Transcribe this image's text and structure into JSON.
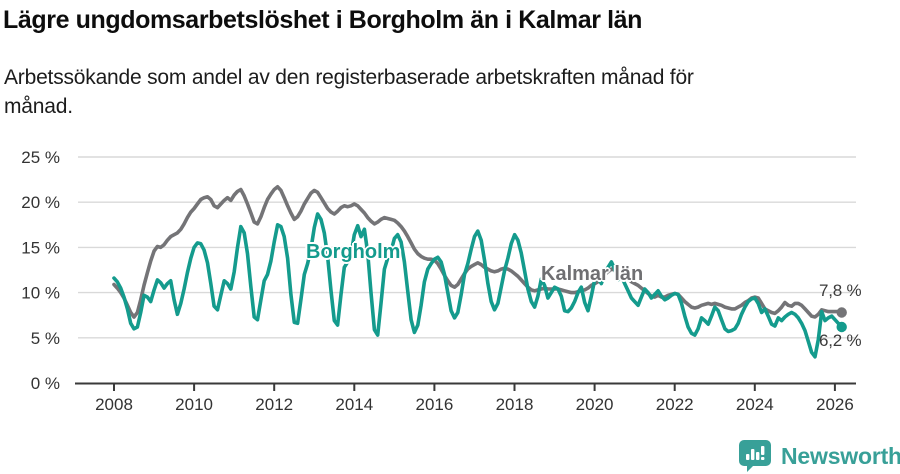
{
  "chart_data": {
    "type": "line",
    "title": "Lägre ungdomsarbetslöshet i Borgholm än i Kalmar län",
    "subtitle_lines": [
      "Arbetssökande som andel av den registerbaserade arbetskraften månad för",
      "månad."
    ],
    "unit": "%",
    "x_range": {
      "start": "2008-01",
      "end": "2026-03"
    },
    "x_tick_labels": [
      "2008",
      "2010",
      "2012",
      "2014",
      "2016",
      "2018",
      "2020",
      "2022",
      "2024",
      "2026"
    ],
    "y_tick_labels": [
      "0 %",
      "5 %",
      "10 %",
      "15 %",
      "20 %",
      "25 %"
    ],
    "y_tick_values": [
      0,
      5,
      10,
      15,
      20,
      25
    ],
    "ylim": [
      0,
      25
    ],
    "grid": "horizontal",
    "legend_position": "inline-labels",
    "colors": {
      "axis": "#3a3a3a",
      "gridline": "#d9d9d9",
      "tick_text": "#333333"
    },
    "series": [
      {
        "name": "Kalmar län",
        "color": "#747477",
        "label_color": "#6f6f72",
        "end_label": "7,8 %",
        "end_value": 7.8,
        "values": [
          10.9,
          10.5,
          10.0,
          9.4,
          8.6,
          7.8,
          7.3,
          7.8,
          9.2,
          10.8,
          12.2,
          13.5,
          14.6,
          15.1,
          15.0,
          15.3,
          15.8,
          16.2,
          16.4,
          16.6,
          17.0,
          17.6,
          18.3,
          18.9,
          19.3,
          19.8,
          20.3,
          20.5,
          20.6,
          20.3,
          19.6,
          19.4,
          19.8,
          20.2,
          20.5,
          20.2,
          20.8,
          21.2,
          21.4,
          20.7,
          19.8,
          18.8,
          17.8,
          17.6,
          18.4,
          19.4,
          20.3,
          20.9,
          21.4,
          21.7,
          21.3,
          20.5,
          19.6,
          18.8,
          18.1,
          18.4,
          19.0,
          19.8,
          20.4,
          21.0,
          21.3,
          21.1,
          20.5,
          19.9,
          19.3,
          18.9,
          18.7,
          19.0,
          19.4,
          19.6,
          19.5,
          19.6,
          19.8,
          19.6,
          19.2,
          18.8,
          18.3,
          17.9,
          17.6,
          17.8,
          18.1,
          18.3,
          18.2,
          18.1,
          18.0,
          17.7,
          17.3,
          16.8,
          16.2,
          15.5,
          14.8,
          14.3,
          14.0,
          13.8,
          13.7,
          13.7,
          13.6,
          13.2,
          12.6,
          11.9,
          11.3,
          10.8,
          10.6,
          10.9,
          11.5,
          12.1,
          12.6,
          12.9,
          13.1,
          13.3,
          13.1,
          12.8,
          12.6,
          12.4,
          12.3,
          12.4,
          12.6,
          12.7,
          12.6,
          12.4,
          12.1,
          11.8,
          11.4,
          11.0,
          10.6,
          10.3,
          10.2,
          10.3,
          10.4,
          10.5,
          10.4,
          10.4,
          10.4,
          10.4,
          10.3,
          10.2,
          10.1,
          10.0,
          10.0,
          10.1,
          10.2,
          10.3,
          10.5,
          10.8,
          11.0,
          11.2,
          11.5,
          12.0,
          12.3,
          12.6,
          12.5,
          12.3,
          12.0,
          11.8,
          11.5,
          11.2,
          11.0,
          10.8,
          10.5,
          10.2,
          9.9,
          9.6,
          9.5,
          9.7,
          9.5,
          9.5,
          9.7,
          9.8,
          9.9,
          9.8,
          9.4,
          9.0,
          8.7,
          8.4,
          8.3,
          8.4,
          8.6,
          8.7,
          8.8,
          8.7,
          8.8,
          8.7,
          8.6,
          8.4,
          8.3,
          8.2,
          8.2,
          8.4,
          8.6,
          8.9,
          9.1,
          9.4,
          9.5,
          9.4,
          8.8,
          8.2,
          8.0,
          7.8,
          7.7,
          8.0,
          8.4,
          8.9,
          8.6,
          8.5,
          8.8,
          8.8,
          8.6,
          8.2,
          7.8,
          7.4,
          7.3,
          7.6,
          8.1,
          8.0,
          7.9,
          7.9,
          7.9,
          7.9,
          7.8
        ]
      },
      {
        "name": "Borgholm",
        "color": "#149b8d",
        "label_color": "#149b8d",
        "end_label": "6,2 %",
        "end_value": 6.2,
        "values": [
          11.6,
          11.2,
          10.5,
          9.5,
          8.2,
          6.6,
          6.0,
          6.2,
          7.8,
          9.7,
          9.5,
          9.0,
          10.3,
          11.4,
          11.1,
          10.5,
          11.0,
          11.3,
          9.2,
          7.6,
          8.8,
          10.4,
          12.2,
          13.8,
          15.0,
          15.5,
          15.4,
          14.7,
          13.3,
          11.0,
          8.5,
          8.1,
          9.7,
          11.3,
          11.0,
          10.4,
          12.3,
          15.0,
          17.3,
          16.6,
          14.3,
          10.6,
          7.3,
          7.0,
          9.2,
          11.3,
          12.0,
          13.5,
          15.6,
          17.5,
          17.3,
          16.2,
          13.8,
          9.8,
          6.7,
          6.6,
          9.2,
          12.0,
          13.2,
          14.8,
          17.2,
          18.7,
          18.1,
          16.6,
          14.0,
          10.2,
          6.9,
          6.4,
          9.8,
          12.8,
          13.4,
          14.2,
          16.4,
          17.4,
          16.2,
          17.0,
          14.4,
          10.0,
          5.9,
          5.3,
          8.8,
          12.6,
          13.8,
          14.6,
          16.0,
          16.4,
          15.6,
          13.4,
          10.2,
          7.0,
          5.6,
          6.4,
          8.6,
          11.2,
          12.6,
          13.2,
          13.7,
          13.9,
          13.4,
          12.0,
          10.0,
          8.0,
          7.2,
          7.8,
          9.8,
          12.0,
          13.2,
          14.8,
          16.2,
          16.8,
          15.8,
          13.6,
          11.0,
          9.0,
          8.1,
          8.8,
          10.6,
          12.4,
          13.8,
          15.4,
          16.4,
          15.8,
          14.4,
          12.4,
          10.4,
          9.0,
          8.4,
          9.6,
          11.5,
          10.8,
          9.4,
          10.0,
          10.6,
          10.4,
          9.6,
          8.0,
          7.9,
          8.3,
          9.0,
          10.0,
          10.6,
          8.9,
          8.0,
          9.6,
          11.4,
          11.6,
          11.0,
          12.0,
          12.8,
          13.4,
          12.6,
          11.4,
          11.8,
          11.0,
          10.2,
          9.4,
          9.0,
          8.6,
          9.5,
          10.4,
          10.0,
          9.4,
          9.8,
          10.2,
          9.6,
          9.2,
          9.4,
          9.7,
          9.9,
          9.8,
          8.8,
          7.4,
          6.2,
          5.5,
          5.3,
          6.0,
          7.2,
          6.9,
          6.5,
          7.4,
          8.4,
          8.0,
          7.0,
          6.0,
          5.7,
          5.8,
          6.0,
          6.6,
          7.6,
          8.4,
          9.0,
          9.3,
          9.4,
          8.8,
          7.8,
          8.2,
          7.4,
          6.5,
          6.3,
          7.2,
          6.9,
          7.3,
          7.6,
          7.8,
          7.6,
          7.2,
          6.6,
          5.8,
          4.6,
          3.4,
          2.9,
          4.8,
          7.9,
          6.9,
          7.2,
          7.4,
          7.0,
          6.6,
          6.2
        ]
      }
    ]
  },
  "footer": {
    "brand": "Newsworthy",
    "brand_color": "#38a098"
  }
}
